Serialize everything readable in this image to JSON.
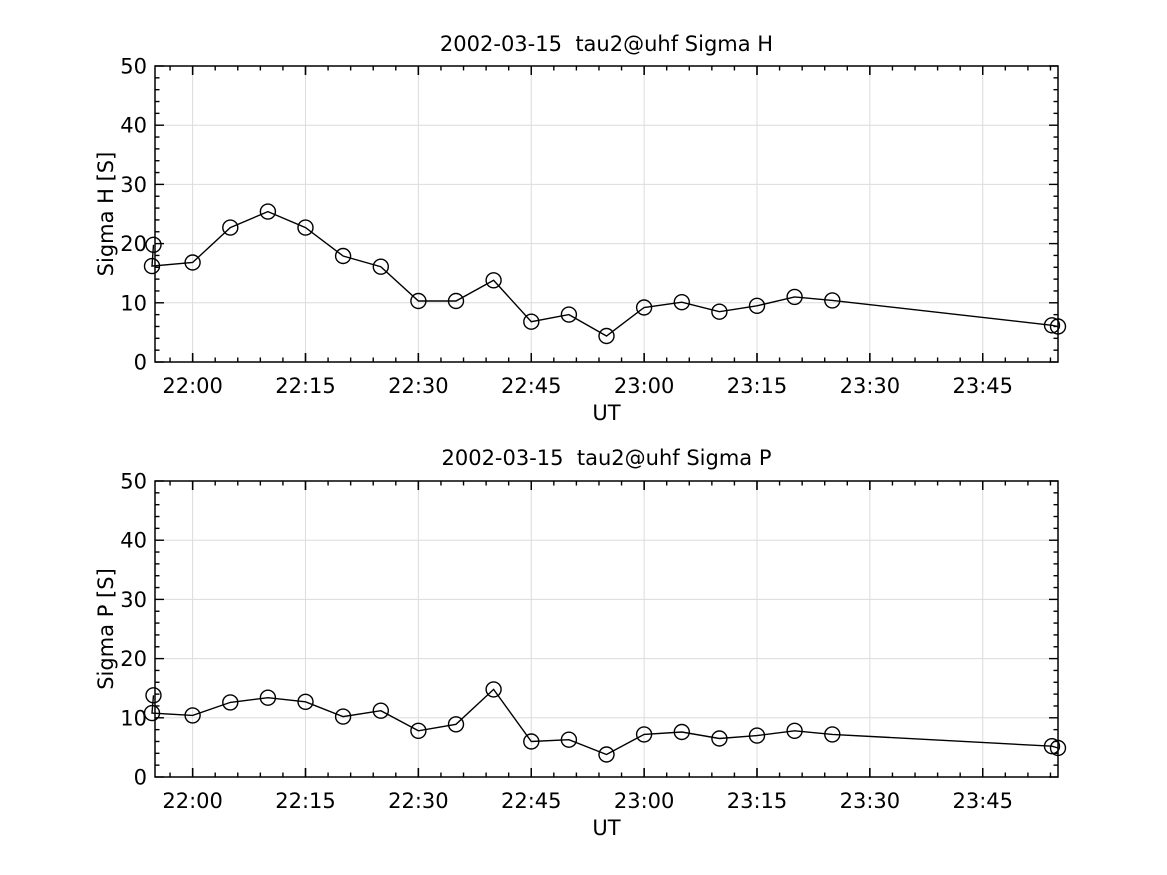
{
  "figure": {
    "background_color": "#ffffff",
    "axis_color": "#000000",
    "grid_color": "#dcdcdc",
    "text_color": "#000000",
    "line_color": "#000000",
    "marker": "open-circle"
  },
  "chart_data": [
    {
      "type": "line",
      "title": "2002-03-15  tau2@uhf Sigma H",
      "xlabel": "UT",
      "ylabel": "Sigma H [S]",
      "ylim": [
        0,
        50
      ],
      "y_major_ticks": [
        0,
        10,
        20,
        30,
        40,
        50
      ],
      "y_minor_step": 2,
      "x_range_ut": [
        "21:55",
        "23:55"
      ],
      "x_major_ticks": [
        "22:00",
        "22:15",
        "22:30",
        "22:45",
        "23:00",
        "23:15",
        "23:30",
        "23:45"
      ],
      "x_minor_step_min": 3,
      "grid": true,
      "legend": null,
      "x_unit": "minutes after 21:55 UT",
      "x_times": [
        "21:55",
        "21:55",
        "22:00",
        "22:05",
        "22:10",
        "22:15",
        "22:20",
        "22:25",
        "22:30",
        "22:35",
        "22:40",
        "22:45",
        "22:50",
        "22:55",
        "23:00",
        "23:05",
        "23:10",
        "23:15",
        "23:20",
        "23:25",
        "23:54",
        "23:55"
      ],
      "x": [
        -0.2,
        -0.4,
        5,
        10,
        15,
        20,
        25,
        30,
        35,
        40,
        45,
        50,
        55,
        60,
        65,
        70,
        75,
        80,
        85,
        90,
        119.2,
        120
      ],
      "y": [
        19.8,
        16.2,
        16.8,
        22.7,
        25.4,
        22.7,
        17.9,
        16.1,
        10.3,
        10.3,
        13.8,
        6.8,
        8.0,
        4.4,
        9.2,
        10.1,
        8.5,
        9.5,
        11.0,
        10.4,
        6.2,
        6.0
      ]
    },
    {
      "type": "line",
      "title": "2002-03-15  tau2@uhf Sigma P",
      "xlabel": "UT",
      "ylabel": "Sigma P [S]",
      "ylim": [
        0,
        50
      ],
      "y_major_ticks": [
        0,
        10,
        20,
        30,
        40,
        50
      ],
      "y_minor_step": 2,
      "x_range_ut": [
        "21:55",
        "23:55"
      ],
      "x_major_ticks": [
        "22:00",
        "22:15",
        "22:30",
        "22:45",
        "23:00",
        "23:15",
        "23:30",
        "23:45"
      ],
      "x_minor_step_min": 3,
      "grid": true,
      "legend": null,
      "x_unit": "minutes after 21:55 UT",
      "x_times": [
        "21:55",
        "21:55",
        "22:00",
        "22:05",
        "22:10",
        "22:15",
        "22:20",
        "22:25",
        "22:30",
        "22:35",
        "22:40",
        "22:45",
        "22:50",
        "22:55",
        "23:00",
        "23:05",
        "23:10",
        "23:15",
        "23:20",
        "23:25",
        "23:54",
        "23:55"
      ],
      "x": [
        -0.2,
        -0.4,
        5,
        10,
        15,
        20,
        25,
        30,
        35,
        40,
        45,
        50,
        55,
        60,
        65,
        70,
        75,
        80,
        85,
        90,
        119.2,
        120
      ],
      "y": [
        13.8,
        10.8,
        10.4,
        12.6,
        13.4,
        12.7,
        10.2,
        11.2,
        7.8,
        8.9,
        14.8,
        6.0,
        6.3,
        3.8,
        7.2,
        7.6,
        6.5,
        7.0,
        7.8,
        7.2,
        5.2,
        4.9
      ]
    }
  ]
}
